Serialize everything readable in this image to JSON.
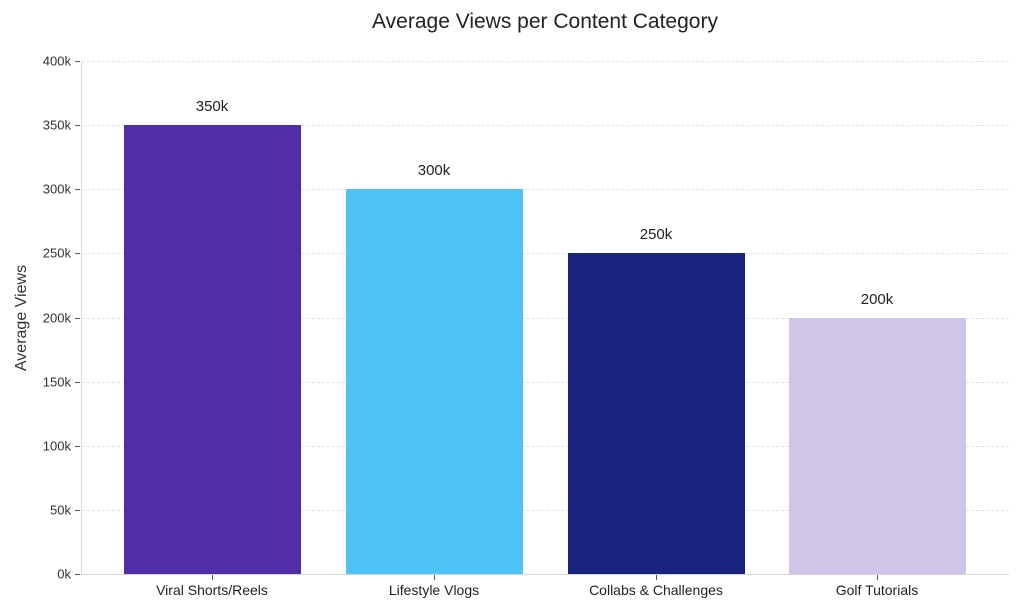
{
  "chart_data": {
    "type": "bar",
    "title": "Average Views per Content Category",
    "xlabel": "",
    "ylabel": "Average Views",
    "categories": [
      "Viral Shorts/Reels",
      "Lifestyle Vlogs",
      "Collabs & Challenges",
      "Golf Tutorials"
    ],
    "values": [
      350000,
      300000,
      250000,
      200000
    ],
    "value_labels": [
      "350k",
      "300k",
      "250k",
      "200k"
    ],
    "colors": [
      "#512da8",
      "#4fc3f7",
      "#1a237e",
      "#d1c4e9"
    ],
    "ylim": [
      0,
      400000
    ],
    "yticks": [
      0,
      50000,
      100000,
      150000,
      200000,
      250000,
      300000,
      350000,
      400000
    ],
    "ytick_labels": [
      "0k",
      "50k",
      "100k",
      "150k",
      "200k",
      "250k",
      "300k",
      "350k",
      "400k"
    ],
    "grid": true,
    "legend": null
  }
}
